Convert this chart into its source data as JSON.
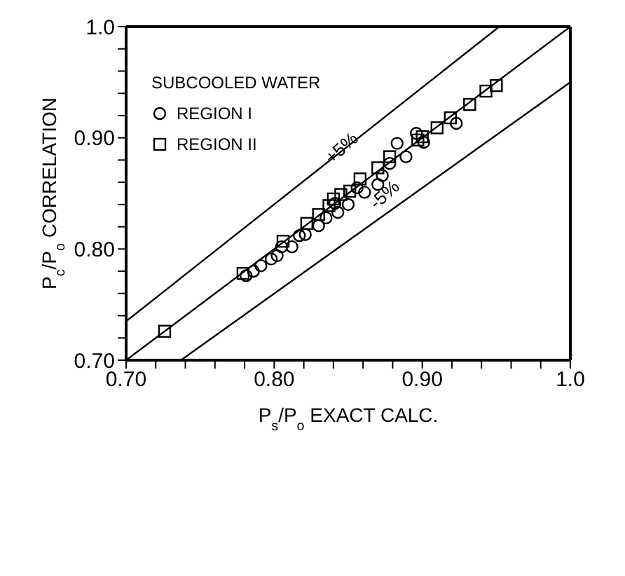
{
  "chart_data": {
    "type": "scatter",
    "xlabel": "P$_{s}$/P$_{o}$ EXACT CALC.",
    "ylabel": "P$_{c}$/P$_{o}$ CORRELATION",
    "legend_title": "SUBCOOLED WATER",
    "legend": "top left",
    "grid": false,
    "xlim": [
      0.7,
      1.0
    ],
    "ylim": [
      0.7,
      1.0
    ],
    "xticks": [
      {
        "value": 0.7,
        "label": "0.70"
      },
      {
        "value": 0.72,
        "label": null
      },
      {
        "value": 0.74,
        "label": null
      },
      {
        "value": 0.76,
        "label": null
      },
      {
        "value": 0.78,
        "label": null
      },
      {
        "value": 0.8,
        "label": "0.80"
      },
      {
        "value": 0.82,
        "label": null
      },
      {
        "value": 0.84,
        "label": null
      },
      {
        "value": 0.86,
        "label": null
      },
      {
        "value": 0.88,
        "label": null
      },
      {
        "value": 0.9,
        "label": "0.90"
      },
      {
        "value": 0.92,
        "label": null
      },
      {
        "value": 0.94,
        "label": null
      },
      {
        "value": 0.96,
        "label": null
      },
      {
        "value": 0.98,
        "label": null
      },
      {
        "value": 1.0,
        "label": "1.0"
      }
    ],
    "yticks": [
      {
        "value": 0.7,
        "label": "0.70"
      },
      {
        "value": 0.72,
        "label": null
      },
      {
        "value": 0.74,
        "label": null
      },
      {
        "value": 0.76,
        "label": null
      },
      {
        "value": 0.78,
        "label": null
      },
      {
        "value": 0.8,
        "label": "0.80"
      },
      {
        "value": 0.82,
        "label": null
      },
      {
        "value": 0.84,
        "label": null
      },
      {
        "value": 0.86,
        "label": null
      },
      {
        "value": 0.88,
        "label": null
      },
      {
        "value": 0.9,
        "label": "0.90"
      },
      {
        "value": 0.92,
        "label": null
      },
      {
        "value": 0.94,
        "label": null
      },
      {
        "value": 0.96,
        "label": null
      },
      {
        "value": 0.98,
        "label": null
      },
      {
        "value": 1.0,
        "label": "1.0"
      }
    ],
    "series": [
      {
        "name": "REGION I",
        "type": "scatter",
        "marker": "circle",
        "color": "#000000",
        "x": [
          0.781,
          0.786,
          0.791,
          0.798,
          0.802,
          0.805,
          0.812,
          0.817,
          0.821,
          0.83,
          0.835,
          0.843,
          0.85,
          0.861,
          0.87,
          0.873,
          0.878,
          0.883,
          0.889,
          0.896,
          0.901,
          0.923,
          0.841,
          0.856
        ],
        "values": [
          0.776,
          0.78,
          0.785,
          0.791,
          0.794,
          0.802,
          0.802,
          0.812,
          0.813,
          0.821,
          0.828,
          0.833,
          0.84,
          0.851,
          0.858,
          0.866,
          0.877,
          0.895,
          0.883,
          0.904,
          0.896,
          0.913,
          0.841,
          0.855
        ]
      },
      {
        "name": "REGION II",
        "type": "scatter",
        "marker": "square",
        "color": "#000000",
        "x": [
          0.726,
          0.779,
          0.806,
          0.822,
          0.83,
          0.837,
          0.84,
          0.845,
          0.851,
          0.858,
          0.87,
          0.878,
          0.897,
          0.9,
          0.91,
          0.919,
          0.932,
          0.943,
          0.95
        ],
        "values": [
          0.726,
          0.778,
          0.807,
          0.823,
          0.831,
          0.839,
          0.845,
          0.849,
          0.852,
          0.863,
          0.873,
          0.883,
          0.898,
          0.901,
          0.909,
          0.918,
          0.93,
          0.942,
          0.947
        ]
      },
      {
        "type": "line",
        "marker": "none",
        "line_style": "solid",
        "color": "#000000",
        "x": [
          0.7,
          1.0
        ],
        "values": [
          0.7,
          1.0
        ]
      },
      {
        "type": "line",
        "marker": "none",
        "line_style": "solid",
        "color": "#000000",
        "x": [
          0.7,
          0.952
        ],
        "values": [
          0.735,
          1.0
        ]
      },
      {
        "type": "line",
        "marker": "none",
        "line_style": "solid",
        "color": "#000000",
        "x": [
          0.737,
          1.0
        ],
        "values": [
          0.7,
          0.95
        ]
      }
    ],
    "annotations": [
      {
        "text": "+5%",
        "x": 0.846,
        "y": 0.89
      },
      {
        "text": "-5%",
        "x": 0.875,
        "y": 0.848
      }
    ]
  }
}
